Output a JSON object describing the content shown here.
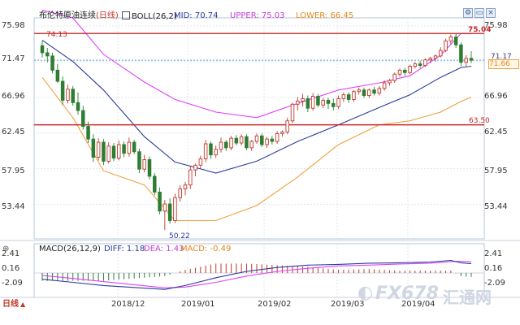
{
  "header": {
    "symbol": "布伦特原油连续",
    "period": "(日线)",
    "boll_label": "BOLL(26,2)",
    "mid": "MID: 70.74",
    "upper": "UPPER: 75.03",
    "lower": "LOWER: 66.45"
  },
  "macd_header": {
    "label": "MACD(26,12,9)",
    "diff": "DIFF: 1.18",
    "dea": "DEA: 1.43",
    "macd": "MACD: -0.49"
  },
  "footer": {
    "period_selector": "日线",
    "period_arrow": "▲"
  },
  "watermark": {
    "brand": "FX678",
    "brand_cn": "汇通网"
  },
  "colors": {
    "up": "#c0392b",
    "down": "#2e7d32",
    "upper_band": "#e040fb",
    "mid_band": "#2a3b9a",
    "lower_band": "#f0a040",
    "hline": "#c62828",
    "dea": "#e040fb",
    "diff": "#2a3b9a"
  },
  "chart_data": {
    "type": "candlestick",
    "price_axis": {
      "ticks": [
        "75.98",
        "71.47",
        "66.96",
        "62.45",
        "57.95",
        "53.44"
      ],
      "ylim": [
        49.5,
        76.6
      ]
    },
    "x_ticks": [
      "2018/12",
      "2019/01",
      "2019/02",
      "2019/03",
      "2019/04"
    ],
    "horizontal_lines": [
      {
        "label": "75.04",
        "value": 75.04
      },
      {
        "label": "63.50",
        "value": 63.5
      }
    ],
    "annotations": [
      {
        "label": "74.13",
        "value": 74.13
      },
      {
        "label": "50.22",
        "value": 50.22
      }
    ],
    "current_price": {
      "label": "71.66",
      "value": 71.66
    },
    "boll_label_right": "71.17",
    "candles": [
      [
        73.5,
        74.1,
        72.0,
        72.6
      ],
      [
        72.6,
        73.2,
        71.4,
        72.2
      ],
      [
        72.2,
        72.6,
        70.0,
        70.4
      ],
      [
        70.4,
        71.2,
        68.8,
        69.0
      ],
      [
        69.0,
        69.6,
        66.0,
        66.6
      ],
      [
        66.6,
        68.6,
        66.2,
        68.0
      ],
      [
        68.0,
        68.4,
        65.9,
        66.3
      ],
      [
        66.3,
        67.6,
        64.8,
        65.3
      ],
      [
        65.3,
        65.9,
        62.9,
        63.3
      ],
      [
        63.3,
        63.9,
        61.2,
        61.7
      ],
      [
        61.7,
        62.3,
        58.8,
        59.4
      ],
      [
        59.4,
        61.8,
        59.0,
        61.3
      ],
      [
        61.3,
        61.7,
        58.4,
        58.9
      ],
      [
        58.9,
        61.3,
        58.6,
        60.8
      ],
      [
        60.8,
        61.2,
        58.9,
        59.3
      ],
      [
        59.3,
        61.5,
        59.0,
        61.0
      ],
      [
        61.0,
        61.4,
        59.4,
        59.9
      ],
      [
        59.9,
        61.9,
        59.5,
        61.3
      ],
      [
        61.3,
        61.6,
        59.8,
        60.1
      ],
      [
        60.1,
        60.5,
        57.4,
        57.9
      ],
      [
        57.9,
        59.7,
        57.5,
        59.1
      ],
      [
        59.1,
        59.5,
        56.6,
        57.0
      ],
      [
        57.0,
        57.4,
        54.6,
        55.0
      ],
      [
        55.0,
        55.6,
        52.2,
        52.6
      ],
      [
        52.6,
        54.0,
        50.2,
        53.5
      ],
      [
        53.5,
        54.2,
        51.0,
        51.4
      ],
      [
        51.4,
        54.8,
        51.1,
        54.3
      ],
      [
        54.3,
        55.9,
        53.8,
        55.4
      ],
      [
        55.4,
        56.3,
        54.6,
        55.9
      ],
      [
        55.9,
        58.3,
        55.4,
        57.8
      ],
      [
        57.8,
        58.6,
        57.0,
        58.4
      ],
      [
        58.4,
        59.6,
        58.0,
        59.2
      ],
      [
        59.2,
        61.6,
        58.8,
        61.1
      ],
      [
        61.1,
        61.4,
        59.2,
        59.7
      ],
      [
        59.7,
        60.9,
        59.3,
        60.4
      ],
      [
        60.4,
        61.9,
        60.0,
        61.3
      ],
      [
        61.3,
        61.6,
        60.2,
        60.6
      ],
      [
        60.6,
        62.1,
        60.3,
        61.8
      ],
      [
        61.8,
        62.2,
        60.9,
        61.2
      ],
      [
        61.2,
        62.3,
        60.9,
        62.0
      ],
      [
        62.0,
        62.3,
        60.3,
        60.6
      ],
      [
        60.6,
        61.6,
        60.2,
        61.4
      ],
      [
        61.4,
        62.4,
        61.1,
        62.1
      ],
      [
        62.1,
        62.4,
        60.7,
        61.0
      ],
      [
        61.0,
        62.0,
        60.6,
        61.7
      ],
      [
        61.7,
        62.1,
        61.0,
        61.4
      ],
      [
        61.4,
        62.7,
        61.1,
        62.4
      ],
      [
        62.4,
        62.8,
        62.0,
        62.6
      ],
      [
        62.6,
        64.4,
        62.3,
        64.0
      ],
      [
        64.0,
        66.3,
        63.7,
        66.1
      ],
      [
        66.1,
        67.0,
        65.3,
        66.5
      ],
      [
        66.5,
        67.4,
        65.8,
        66.8
      ],
      [
        66.8,
        67.2,
        65.1,
        65.6
      ],
      [
        65.6,
        67.5,
        65.3,
        67.1
      ],
      [
        67.1,
        67.4,
        65.7,
        66.0
      ],
      [
        66.0,
        66.9,
        65.6,
        66.6
      ],
      [
        66.6,
        66.9,
        65.5,
        66.2
      ],
      [
        66.2,
        66.8,
        65.3,
        65.8
      ],
      [
        65.8,
        67.2,
        65.5,
        66.8
      ],
      [
        66.8,
        67.6,
        66.4,
        67.3
      ],
      [
        67.3,
        67.6,
        66.3,
        66.7
      ],
      [
        66.7,
        67.9,
        66.4,
        67.7
      ],
      [
        67.7,
        68.2,
        67.3,
        67.9
      ],
      [
        67.9,
        68.2,
        66.9,
        67.2
      ],
      [
        67.2,
        68.1,
        66.9,
        67.9
      ],
      [
        67.9,
        68.3,
        67.2,
        67.5
      ],
      [
        67.5,
        68.4,
        67.2,
        68.1
      ],
      [
        68.1,
        69.1,
        67.8,
        68.8
      ],
      [
        68.8,
        69.3,
        68.4,
        69.1
      ],
      [
        69.1,
        70.1,
        68.8,
        69.9
      ],
      [
        69.9,
        70.6,
        69.6,
        70.4
      ],
      [
        70.4,
        70.7,
        69.7,
        70.1
      ],
      [
        70.1,
        71.1,
        69.9,
        70.9
      ],
      [
        70.9,
        71.4,
        70.6,
        71.2
      ],
      [
        71.2,
        71.6,
        70.7,
        71.0
      ],
      [
        71.0,
        71.9,
        70.8,
        71.7
      ],
      [
        71.7,
        72.1,
        71.3,
        71.9
      ],
      [
        71.9,
        72.4,
        71.5,
        72.2
      ],
      [
        72.2,
        73.3,
        72.0,
        72.9
      ],
      [
        72.9,
        74.4,
        72.7,
        74.1
      ],
      [
        74.1,
        74.9,
        73.7,
        74.6
      ],
      [
        74.6,
        75.0,
        73.2,
        73.6
      ],
      [
        73.6,
        73.9,
        70.9,
        71.4
      ],
      [
        71.4,
        72.3,
        70.9,
        71.9
      ],
      [
        71.9,
        72.8,
        71.3,
        71.66
      ]
    ],
    "boll_upper": [
      [
        0,
        78.0
      ],
      [
        6,
        77.0
      ],
      [
        12,
        72.4
      ],
      [
        20,
        68.9
      ],
      [
        26,
        66.7
      ],
      [
        34,
        65.1
      ],
      [
        42,
        64.4
      ],
      [
        50,
        66.2
      ],
      [
        58,
        67.9
      ],
      [
        66,
        68.8
      ],
      [
        72,
        69.7
      ],
      [
        78,
        72.3
      ],
      [
        82,
        75.03
      ],
      [
        84,
        75.0
      ]
    ],
    "boll_mid": [
      [
        0,
        74.2
      ],
      [
        6,
        71.5
      ],
      [
        12,
        67.9
      ],
      [
        20,
        62.0
      ],
      [
        26,
        58.8
      ],
      [
        34,
        57.4
      ],
      [
        42,
        58.9
      ],
      [
        50,
        61.4
      ],
      [
        58,
        63.5
      ],
      [
        66,
        65.7
      ],
      [
        72,
        67.3
      ],
      [
        78,
        69.5
      ],
      [
        82,
        70.74
      ],
      [
        84,
        70.9
      ]
    ],
    "boll_lower": [
      [
        0,
        69.5
      ],
      [
        6,
        64.4
      ],
      [
        12,
        57.7
      ],
      [
        20,
        55.9
      ],
      [
        26,
        51.4
      ],
      [
        34,
        51.4
      ],
      [
        42,
        53.3
      ],
      [
        50,
        56.9
      ],
      [
        58,
        61.0
      ],
      [
        66,
        63.5
      ],
      [
        72,
        64.0
      ],
      [
        78,
        65.1
      ],
      [
        82,
        66.45
      ],
      [
        84,
        67.0
      ]
    ],
    "macd": {
      "axis_ticks": [
        "2.41",
        "0.16",
        "-2.09"
      ],
      "ylim": [
        -2.7,
        2.9
      ],
      "diff": [
        [
          0,
          -0.8
        ],
        [
          6,
          -1.2
        ],
        [
          12,
          -1.6
        ],
        [
          18,
          -1.85
        ],
        [
          24,
          -2.1
        ],
        [
          28,
          -1.6
        ],
        [
          34,
          -0.6
        ],
        [
          40,
          0.2
        ],
        [
          46,
          0.7
        ],
        [
          52,
          1.0
        ],
        [
          58,
          1.1
        ],
        [
          64,
          1.25
        ],
        [
          70,
          1.3
        ],
        [
          76,
          1.4
        ],
        [
          80,
          1.6
        ],
        [
          82,
          1.3
        ],
        [
          84,
          1.18
        ]
      ],
      "dea": [
        [
          0,
          -0.3
        ],
        [
          6,
          -0.7
        ],
        [
          12,
          -1.1
        ],
        [
          18,
          -1.5
        ],
        [
          24,
          -1.9
        ],
        [
          28,
          -1.8
        ],
        [
          34,
          -1.2
        ],
        [
          40,
          -0.4
        ],
        [
          46,
          0.2
        ],
        [
          52,
          0.6
        ],
        [
          58,
          0.9
        ],
        [
          64,
          1.0
        ],
        [
          70,
          1.15
        ],
        [
          76,
          1.25
        ],
        [
          80,
          1.45
        ],
        [
          82,
          1.5
        ],
        [
          84,
          1.43
        ]
      ]
    }
  }
}
